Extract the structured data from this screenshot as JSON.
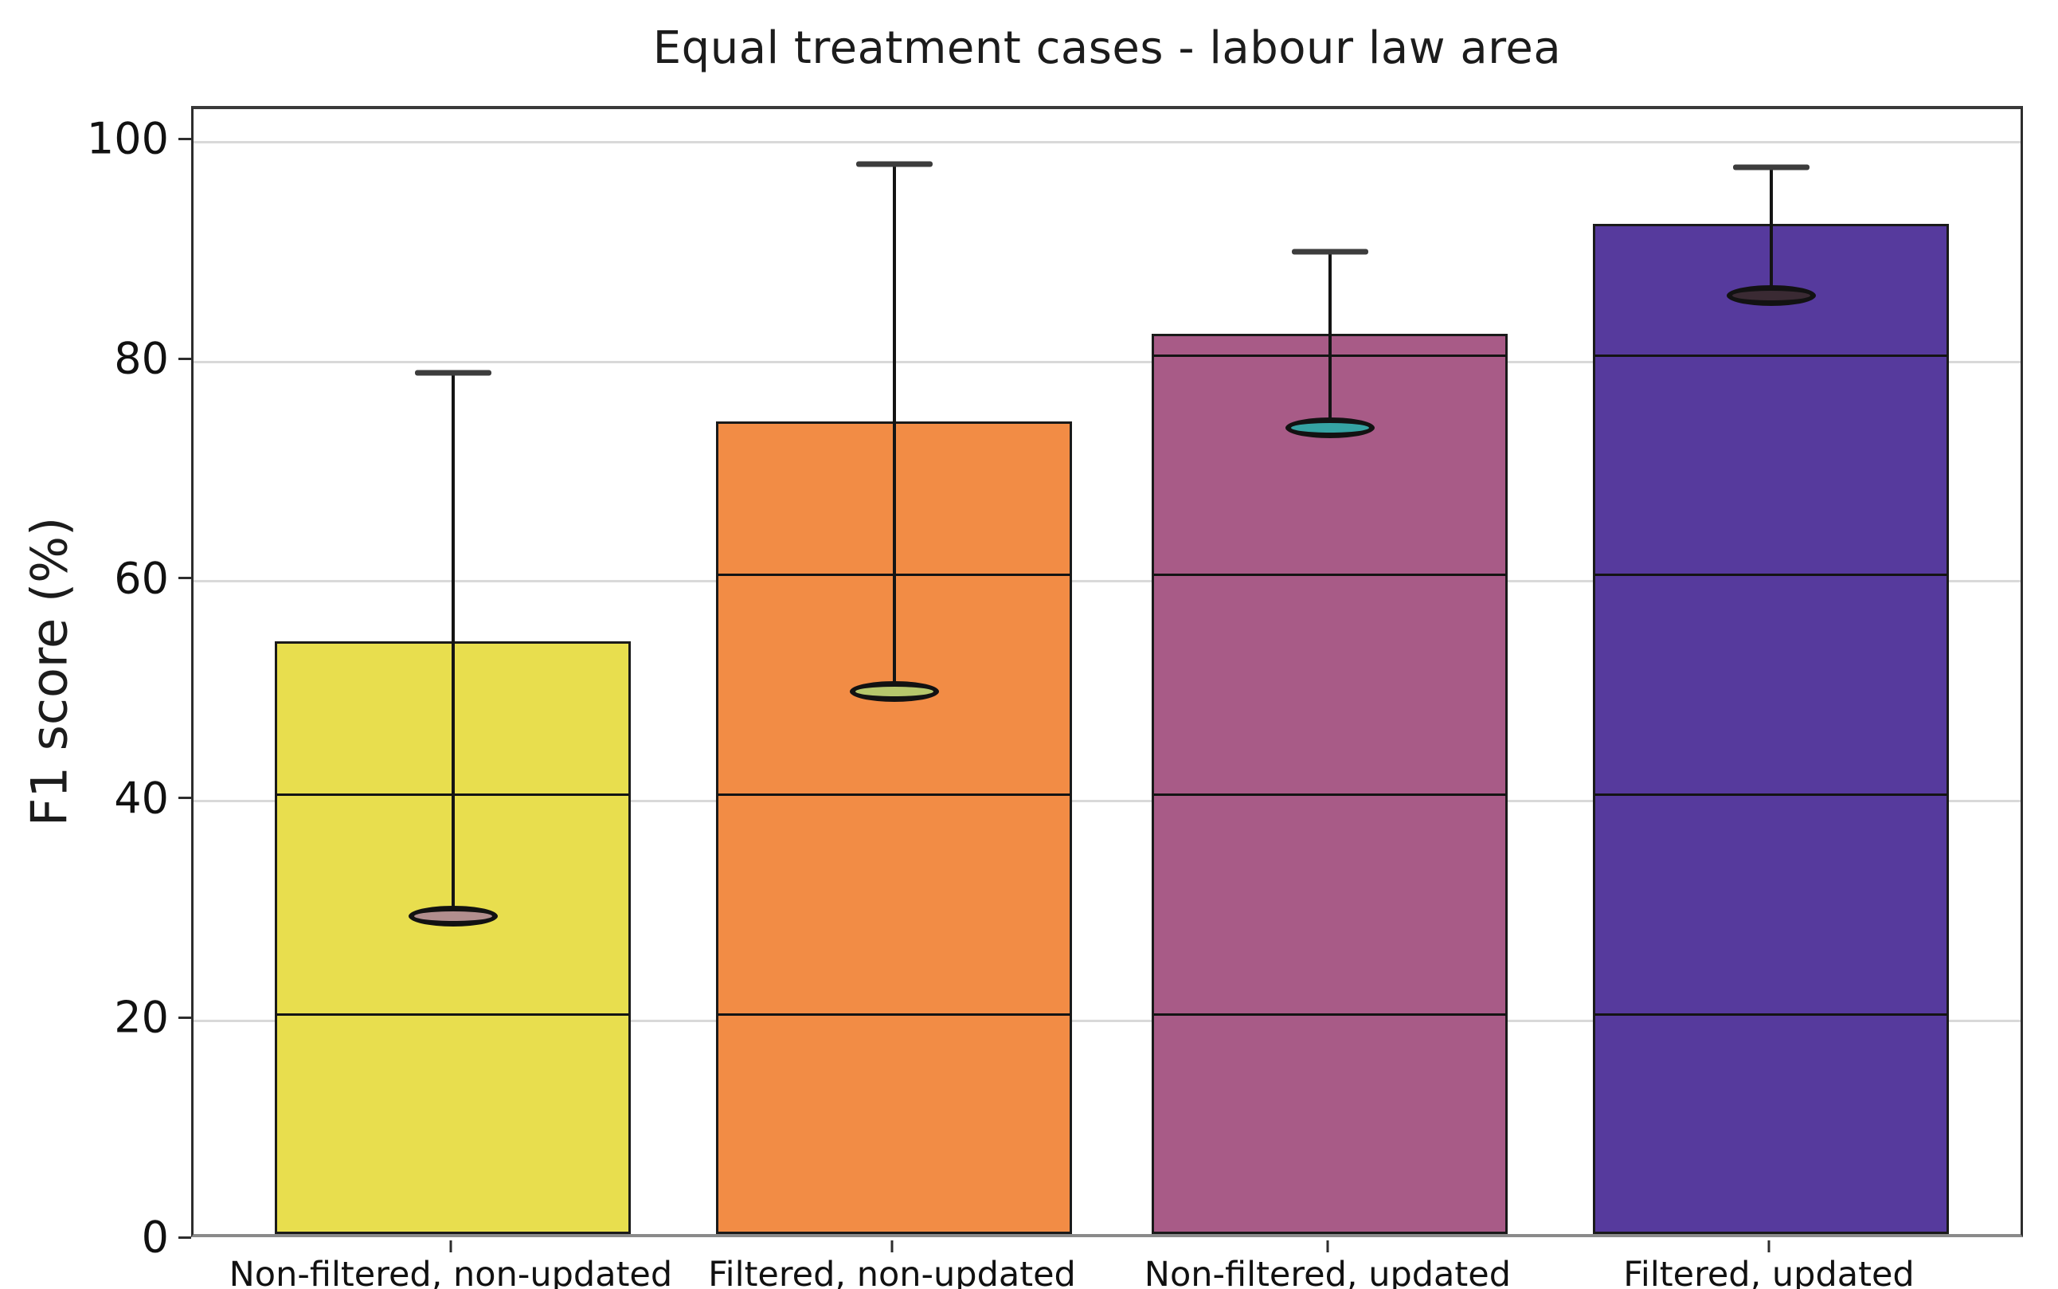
{
  "chart_data": {
    "type": "bar",
    "title": "Equal treatment cases - labour law area",
    "xlabel": "",
    "ylabel": "F1 score (%)",
    "ylim": [
      0,
      103
    ],
    "yticks": [
      0,
      20,
      40,
      60,
      80,
      100
    ],
    "grid": true,
    "legend_position": "none",
    "categories": [
      "Non-filtered, non-updated",
      "Filtered, non-updated",
      "Non-filtered, updated",
      "Filtered, updated"
    ],
    "series": [
      {
        "name": "F1 score",
        "values": [
          54,
          74,
          82,
          92
        ],
        "error_low": [
          29.5,
          50,
          74,
          86
        ],
        "error_high": [
          79,
          98,
          90,
          97.7
        ]
      }
    ],
    "bar_colors": [
      "#e8de4e",
      "#f28c45",
      "#a85b87",
      "#563a9d"
    ],
    "bar_edge_color": "#1a1a1a",
    "cap_fill_colors": [
      "#b28e8e",
      "#b6c76c",
      "#35a3a3",
      "#3a2a33"
    ],
    "top_cap_color": "#3d3d3d",
    "gridline_color": "#d9d9d9",
    "segment_interval": 20,
    "background_color": "#ffffff"
  }
}
